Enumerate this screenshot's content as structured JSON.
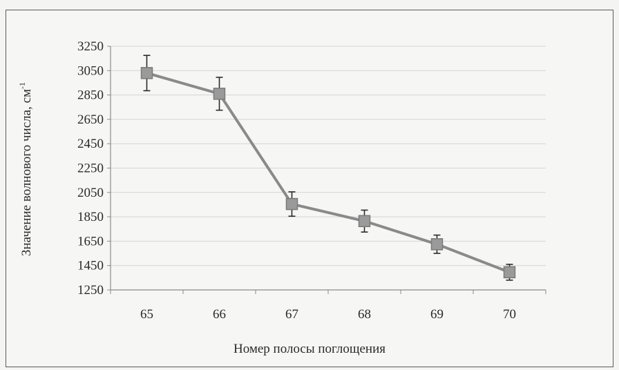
{
  "chart_data": {
    "type": "line",
    "title": "",
    "xlabel": "Номер полосы поглощения",
    "ylabel": "Значение волнового числа, см",
    "ylabel_superscript": "-1",
    "categories": [
      "65",
      "66",
      "67",
      "68",
      "69",
      "70"
    ],
    "series": [
      {
        "values": [
          3030,
          2860,
          1955,
          1815,
          1625,
          1395
        ],
        "error": [
          145,
          135,
          100,
          90,
          75,
          65
        ],
        "color": "#8a8a8a",
        "marker": "square"
      }
    ],
    "ylim": [
      1250,
      3250
    ],
    "yticks": [
      1250,
      1450,
      1650,
      1850,
      2050,
      2250,
      2450,
      2650,
      2850,
      3050,
      3250
    ],
    "ytick_labels": [
      "1250",
      "1450",
      "1650",
      "1850",
      "2050",
      "2250",
      "2450",
      "2650",
      "2850",
      "3050",
      "3250"
    ],
    "grid": true,
    "legend": "none"
  }
}
